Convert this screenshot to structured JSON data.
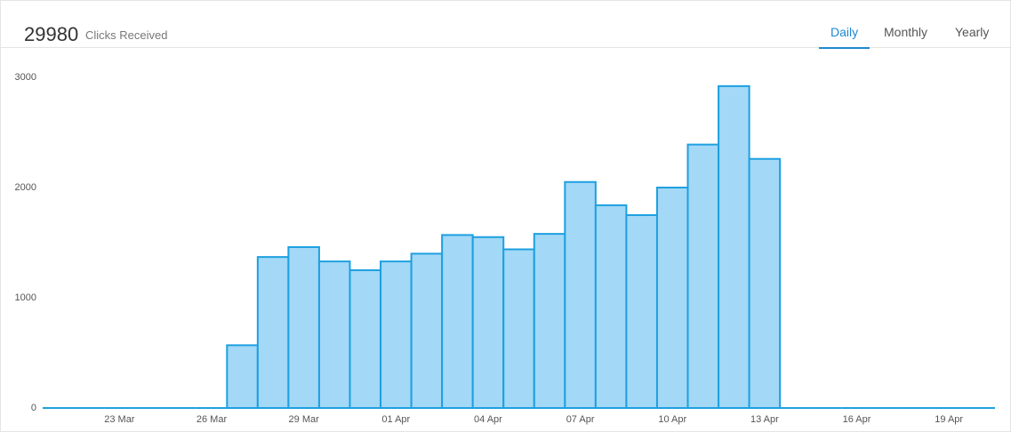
{
  "header": {
    "total": 29980,
    "label": "Clicks Received",
    "tabs": [
      "Daily",
      "Monthly",
      "Yearly"
    ]
  },
  "chart_data": {
    "type": "bar",
    "categories": [
      null,
      null,
      "23 Mar",
      null,
      null,
      "26 Mar",
      null,
      null,
      "29 Mar",
      null,
      null,
      "01 Apr",
      null,
      null,
      "04 Apr",
      null,
      null,
      "07 Apr",
      null,
      null,
      "10 Apr",
      null,
      null,
      "13 Apr",
      null,
      null,
      "16 Apr",
      null,
      null,
      "19 Apr",
      null
    ],
    "values": [
      0,
      0,
      0,
      0,
      0,
      0,
      570,
      1370,
      1460,
      1330,
      1250,
      1330,
      1400,
      1570,
      1550,
      1440,
      1580,
      2050,
      1840,
      1750,
      2000,
      2390,
      2920,
      2260,
      0,
      0,
      0,
      0,
      0,
      0,
      0
    ],
    "color": "#a3d8f7",
    "edge_color": "#1ea0e0",
    "ylim": [
      0,
      3000
    ],
    "yticks": [
      0,
      1000,
      2000,
      3000
    ],
    "grid": false
  }
}
